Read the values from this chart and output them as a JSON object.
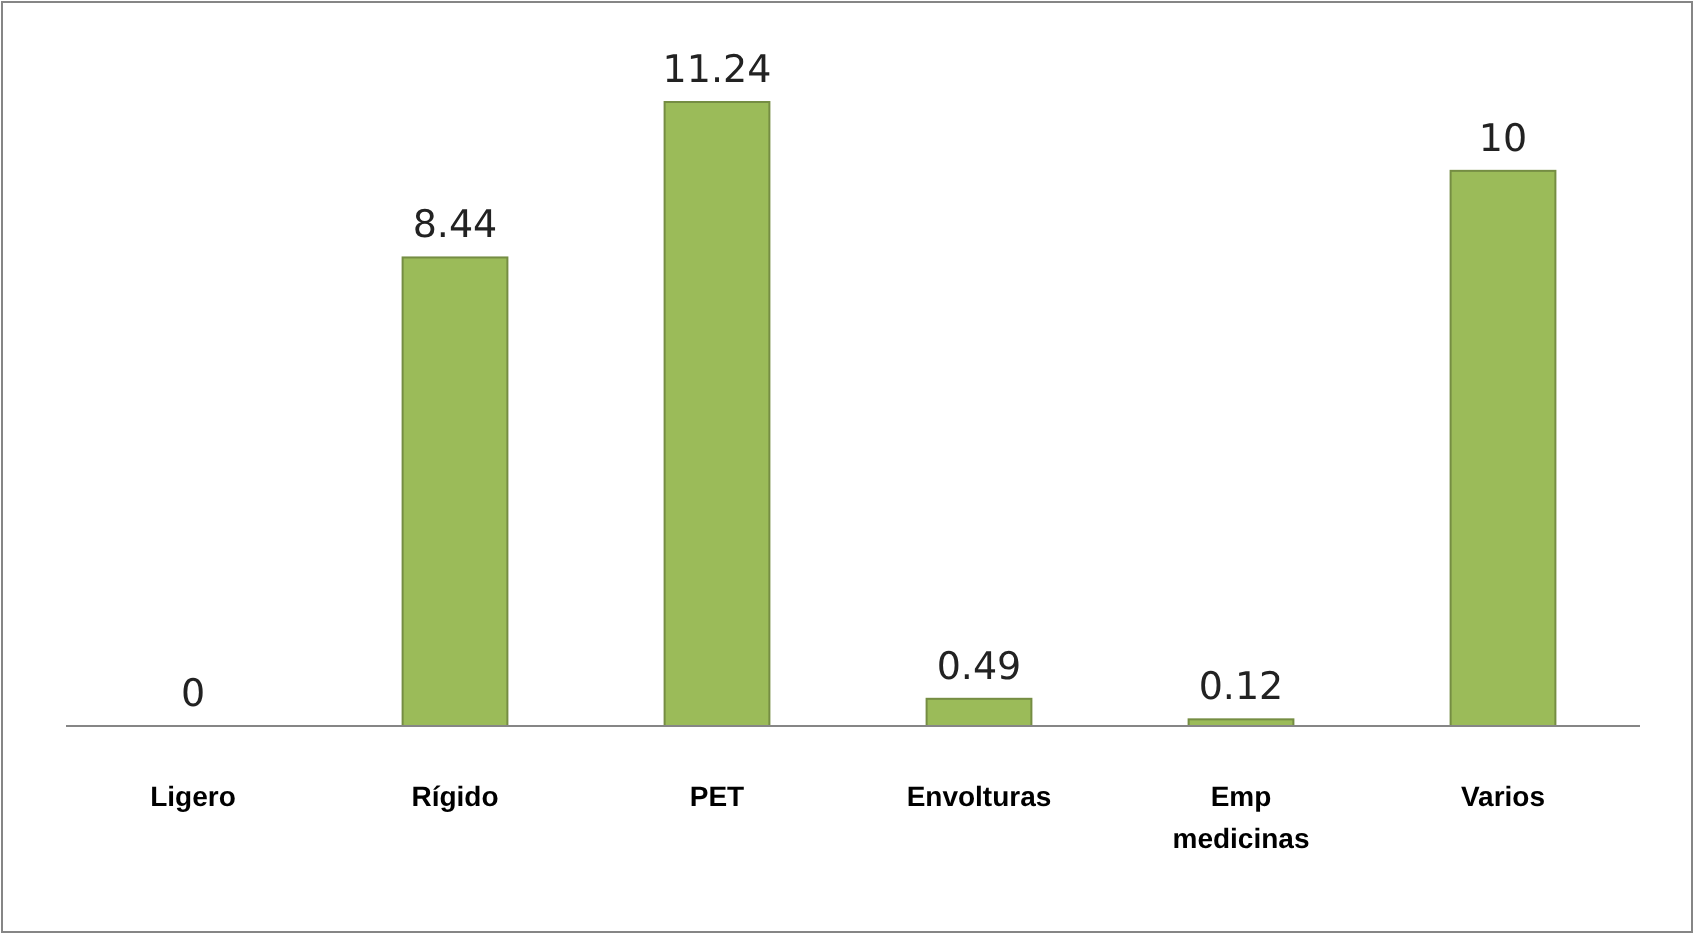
{
  "chart_data": {
    "type": "bar",
    "categories": [
      "Ligero",
      "Rígido",
      "PET",
      "Envolturas",
      "Emp medicinas",
      "Varios"
    ],
    "values": [
      0,
      8.44,
      11.24,
      0.49,
      0.12,
      10
    ],
    "color": "#9bbb59",
    "data_labels": true
  }
}
